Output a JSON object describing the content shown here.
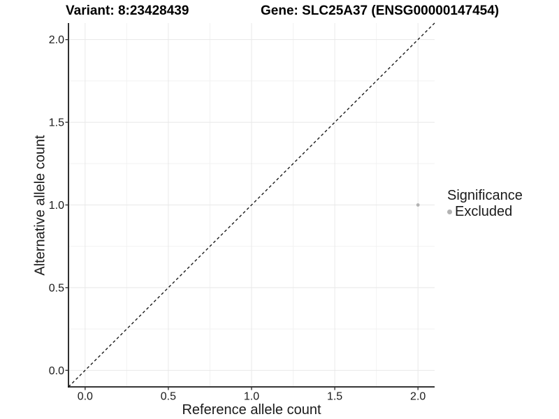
{
  "chart_data": {
    "type": "scatter",
    "titles": [
      "Variant: 8:23428439",
      "Gene: SLC25A37 (ENSG00000147454)"
    ],
    "xlabel": "Reference allele count",
    "ylabel": "Alternative allele count",
    "xlim": [
      -0.1,
      2.1
    ],
    "ylim": [
      -0.1,
      2.1
    ],
    "x_ticks": {
      "values": [
        0,
        0.5,
        1,
        1.5,
        2
      ],
      "labels": [
        "0.0",
        "0.5",
        "1.0",
        "1.5",
        "2.0"
      ]
    },
    "y_ticks": {
      "values": [
        0,
        0.5,
        1,
        1.5,
        2
      ],
      "labels": [
        "0.0",
        "0.5",
        "1.0",
        "1.5",
        "2.0"
      ]
    },
    "grid": {
      "show": true,
      "major_color": "#e8e8e8",
      "minor_color": "#f2f2f2"
    },
    "axis_color": "#1a1a1a",
    "tick_color": "#333333",
    "identity_line": {
      "style": "dashed",
      "color": "#1a1a1a",
      "from": [
        -0.1,
        -0.1
      ],
      "to": [
        2.1,
        2.1
      ]
    },
    "series": [
      {
        "name": "Excluded",
        "color": "#b3b3b3",
        "points": [
          [
            2.0,
            1.0
          ]
        ]
      }
    ],
    "legend": {
      "title": "Significance",
      "position": "right",
      "entries": [
        {
          "label": "Excluded",
          "color": "#b3b3b3"
        }
      ]
    }
  }
}
